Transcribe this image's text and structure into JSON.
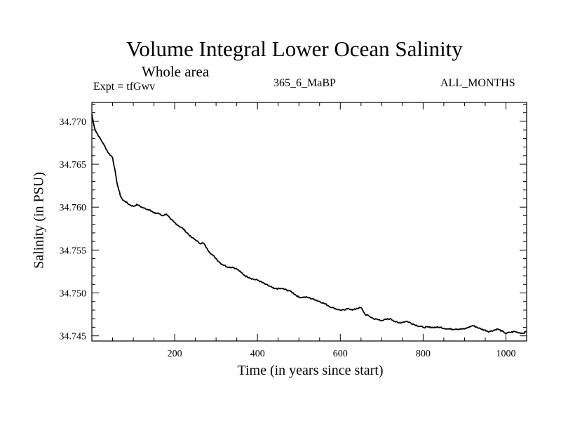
{
  "chart_data": {
    "type": "line",
    "title": "Volume Integral Lower Ocean Salinity",
    "subtitle": "Whole area",
    "experiment_label": "Expt = tfGwv",
    "run_label": "365_6_MaBP",
    "months_label": "ALL_MONTHS",
    "xlabel": "Time (in years since start)",
    "ylabel": "Salinity (in PSU)",
    "xlim": [
      0,
      1050
    ],
    "ylim": [
      34.7444,
      34.7722
    ],
    "x_ticks": [
      200,
      400,
      600,
      800,
      1000
    ],
    "x_tick_labels": [
      "200",
      "400",
      "600",
      "800",
      "1000"
    ],
    "y_ticks": [
      34.745,
      34.75,
      34.755,
      34.76,
      34.765,
      34.77
    ],
    "y_tick_labels": [
      "34.745",
      "34.750",
      "34.755",
      "34.760",
      "34.765",
      "34.770"
    ],
    "grid": false,
    "line_color": "#000000",
    "series": [
      {
        "name": "Salinity",
        "x": [
          0,
          5,
          10,
          20,
          30,
          40,
          50,
          55,
          60,
          65,
          70,
          75,
          80,
          90,
          100,
          110,
          120,
          130,
          140,
          150,
          160,
          170,
          180,
          190,
          200,
          210,
          220,
          230,
          240,
          250,
          260,
          270,
          280,
          290,
          300,
          310,
          320,
          330,
          340,
          350,
          360,
          370,
          380,
          390,
          400,
          420,
          440,
          460,
          480,
          500,
          520,
          540,
          560,
          580,
          600,
          610,
          620,
          630,
          640,
          650,
          660,
          670,
          680,
          700,
          720,
          740,
          760,
          780,
          800,
          820,
          840,
          860,
          880,
          900,
          920,
          930,
          940,
          960,
          980,
          1000,
          1020,
          1040,
          1050
        ],
        "values": [
          34.7708,
          34.7695,
          34.7688,
          34.768,
          34.7672,
          34.7663,
          34.7658,
          34.7645,
          34.763,
          34.762,
          34.7612,
          34.7608,
          34.7607,
          34.7603,
          34.7601,
          34.7603,
          34.76,
          34.7598,
          34.7597,
          34.7593,
          34.7593,
          34.759,
          34.7592,
          34.7586,
          34.7582,
          34.7578,
          34.7575,
          34.757,
          34.7565,
          34.7562,
          34.7558,
          34.7558,
          34.755,
          34.7545,
          34.754,
          34.7535,
          34.7532,
          34.753,
          34.753,
          34.7528,
          34.7524,
          34.752,
          34.7518,
          34.7516,
          34.7515,
          34.751,
          34.7505,
          34.7505,
          34.7502,
          34.7495,
          34.7495,
          34.7492,
          34.7488,
          34.7483,
          34.748,
          34.748,
          34.7482,
          34.748,
          34.7482,
          34.7483,
          34.7475,
          34.7473,
          34.747,
          34.7468,
          34.747,
          34.7465,
          34.7467,
          34.7463,
          34.746,
          34.746,
          34.746,
          34.7458,
          34.7458,
          34.7458,
          34.7462,
          34.746,
          34.7458,
          34.7455,
          34.7458,
          34.7453,
          34.7455,
          34.7453,
          34.7455
        ]
      }
    ]
  }
}
